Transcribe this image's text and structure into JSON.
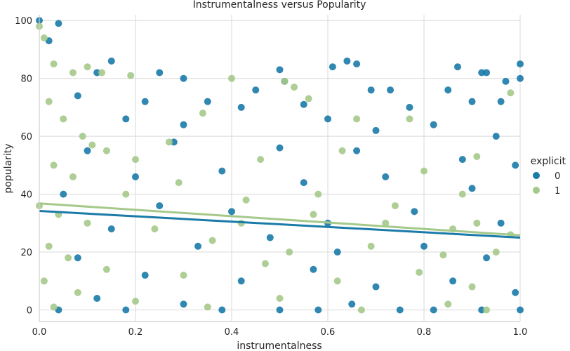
{
  "chart_data": {
    "type": "scatter",
    "title": "Instrumentalness versus Popularity",
    "xlabel": "instrumentalness",
    "ylabel": "popularity",
    "xlim": [
      0,
      1
    ],
    "ylim": [
      -4,
      102
    ],
    "x_ticks": [
      "0.0",
      "0.2",
      "0.4",
      "0.6",
      "0.8",
      "1.0"
    ],
    "y_ticks": [
      "0",
      "20",
      "40",
      "60",
      "80",
      "100"
    ],
    "grid": true,
    "legend": {
      "title": "explicit",
      "placement": "right",
      "entries": [
        "0",
        "1"
      ]
    },
    "colors": {
      "0": "#1a7aa8",
      "1": "#a5c98a",
      "grid": "#d9d9d9"
    },
    "series": [
      {
        "name": "0",
        "points": [
          [
            0.0,
            100
          ],
          [
            0.04,
            99
          ],
          [
            0.02,
            93
          ],
          [
            0.15,
            86
          ],
          [
            0.61,
            84
          ],
          [
            0.64,
            86
          ],
          [
            0.66,
            85
          ],
          [
            0.87,
            84
          ],
          [
            0.92,
            82
          ],
          [
            0.93,
            82
          ],
          [
            1.0,
            85
          ],
          [
            1.0,
            80
          ],
          [
            0.97,
            79
          ],
          [
            0.12,
            82
          ],
          [
            0.25,
            82
          ],
          [
            0.3,
            80
          ],
          [
            0.5,
            83
          ],
          [
            0.51,
            79
          ],
          [
            0.73,
            76
          ],
          [
            0.85,
            76
          ],
          [
            0.45,
            76
          ],
          [
            0.69,
            76
          ],
          [
            0.35,
            72
          ],
          [
            0.42,
            70
          ],
          [
            0.55,
            71
          ],
          [
            0.77,
            70
          ],
          [
            0.9,
            72
          ],
          [
            0.96,
            72
          ],
          [
            0.08,
            74
          ],
          [
            0.22,
            72
          ],
          [
            0.18,
            66
          ],
          [
            0.3,
            64
          ],
          [
            0.6,
            66
          ],
          [
            0.7,
            62
          ],
          [
            0.82,
            64
          ],
          [
            0.95,
            60
          ],
          [
            0.1,
            55
          ],
          [
            0.28,
            58
          ],
          [
            0.5,
            56
          ],
          [
            0.66,
            55
          ],
          [
            0.88,
            52
          ],
          [
            0.99,
            50
          ],
          [
            0.2,
            46
          ],
          [
            0.38,
            48
          ],
          [
            0.55,
            44
          ],
          [
            0.72,
            46
          ],
          [
            0.9,
            42
          ],
          [
            0.05,
            40
          ],
          [
            0.25,
            36
          ],
          [
            0.4,
            34
          ],
          [
            0.6,
            30
          ],
          [
            0.78,
            34
          ],
          [
            0.96,
            30
          ],
          [
            0.15,
            28
          ],
          [
            0.33,
            22
          ],
          [
            0.48,
            25
          ],
          [
            0.62,
            20
          ],
          [
            0.8,
            22
          ],
          [
            0.93,
            18
          ],
          [
            0.08,
            18
          ],
          [
            0.22,
            12
          ],
          [
            0.42,
            10
          ],
          [
            0.57,
            14
          ],
          [
            0.7,
            8
          ],
          [
            0.86,
            10
          ],
          [
            0.99,
            6
          ],
          [
            0.12,
            4
          ],
          [
            0.3,
            2
          ],
          [
            0.5,
            0
          ],
          [
            0.65,
            2
          ],
          [
            0.82,
            0
          ],
          [
            1.0,
            0
          ],
          [
            0.18,
            0
          ],
          [
            0.38,
            0
          ],
          [
            0.58,
            0
          ],
          [
            0.75,
            0
          ],
          [
            0.92,
            0
          ],
          [
            0.04,
            0
          ]
        ]
      },
      {
        "name": "1",
        "points": [
          [
            0.0,
            98
          ],
          [
            0.01,
            94
          ],
          [
            0.03,
            85
          ],
          [
            0.07,
            82
          ],
          [
            0.1,
            84
          ],
          [
            0.13,
            82
          ],
          [
            0.19,
            81
          ],
          [
            0.4,
            80
          ],
          [
            0.51,
            79
          ],
          [
            0.53,
            77
          ],
          [
            0.98,
            75
          ],
          [
            0.34,
            68
          ],
          [
            0.56,
            73
          ],
          [
            0.66,
            66
          ],
          [
            0.77,
            66
          ],
          [
            0.02,
            72
          ],
          [
            0.05,
            66
          ],
          [
            0.09,
            60
          ],
          [
            0.11,
            57
          ],
          [
            0.14,
            55
          ],
          [
            0.2,
            52
          ],
          [
            0.27,
            58
          ],
          [
            0.46,
            52
          ],
          [
            0.63,
            55
          ],
          [
            0.8,
            48
          ],
          [
            0.91,
            53
          ],
          [
            0.03,
            50
          ],
          [
            0.07,
            46
          ],
          [
            0.18,
            40
          ],
          [
            0.29,
            44
          ],
          [
            0.43,
            38
          ],
          [
            0.58,
            40
          ],
          [
            0.74,
            36
          ],
          [
            0.88,
            40
          ],
          [
            0.0,
            36
          ],
          [
            0.04,
            33
          ],
          [
            0.1,
            30
          ],
          [
            0.24,
            28
          ],
          [
            0.36,
            24
          ],
          [
            0.52,
            20
          ],
          [
            0.69,
            22
          ],
          [
            0.84,
            19
          ],
          [
            0.95,
            20
          ],
          [
            0.02,
            22
          ],
          [
            0.06,
            18
          ],
          [
            0.14,
            14
          ],
          [
            0.3,
            12
          ],
          [
            0.47,
            16
          ],
          [
            0.62,
            10
          ],
          [
            0.79,
            13
          ],
          [
            0.9,
            8
          ],
          [
            0.01,
            10
          ],
          [
            0.08,
            6
          ],
          [
            0.2,
            3
          ],
          [
            0.35,
            1
          ],
          [
            0.5,
            4
          ],
          [
            0.67,
            0
          ],
          [
            0.85,
            2
          ],
          [
            0.93,
            0
          ],
          [
            0.03,
            1
          ],
          [
            0.72,
            30
          ],
          [
            0.86,
            28
          ],
          [
            0.91,
            30
          ],
          [
            0.98,
            26
          ],
          [
            0.42,
            30
          ],
          [
            0.57,
            33
          ]
        ]
      }
    ],
    "regression": [
      {
        "series": "0",
        "x": [
          0,
          1
        ],
        "y": [
          34.2,
          25.0
        ]
      },
      {
        "series": "1",
        "x": [
          0,
          1
        ],
        "y": [
          36.8,
          25.8
        ]
      }
    ]
  }
}
